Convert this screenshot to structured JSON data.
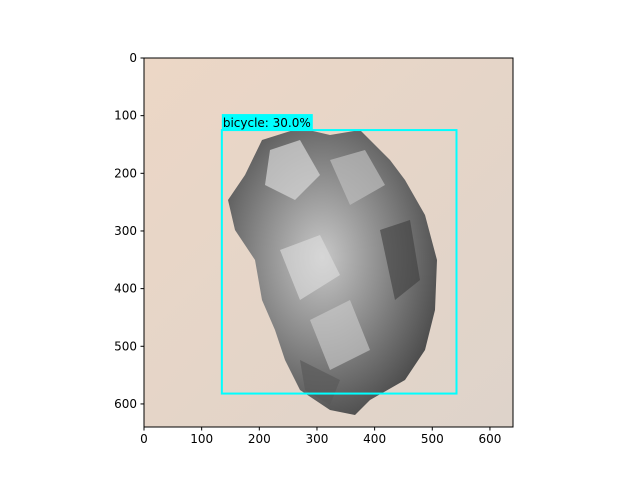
{
  "chart_data": {
    "type": "image",
    "xlim": [
      0,
      640
    ],
    "ylim": [
      640,
      0
    ],
    "xticks": [
      0,
      100,
      200,
      300,
      400,
      500,
      600
    ],
    "yticks": [
      0,
      100,
      200,
      300,
      400,
      500,
      600
    ],
    "boxes": [
      {
        "label": "bicycle: 30.0%",
        "x0": 135,
        "y0": 125,
        "x1": 542,
        "y1": 582,
        "color": "#00ffff"
      }
    ]
  }
}
